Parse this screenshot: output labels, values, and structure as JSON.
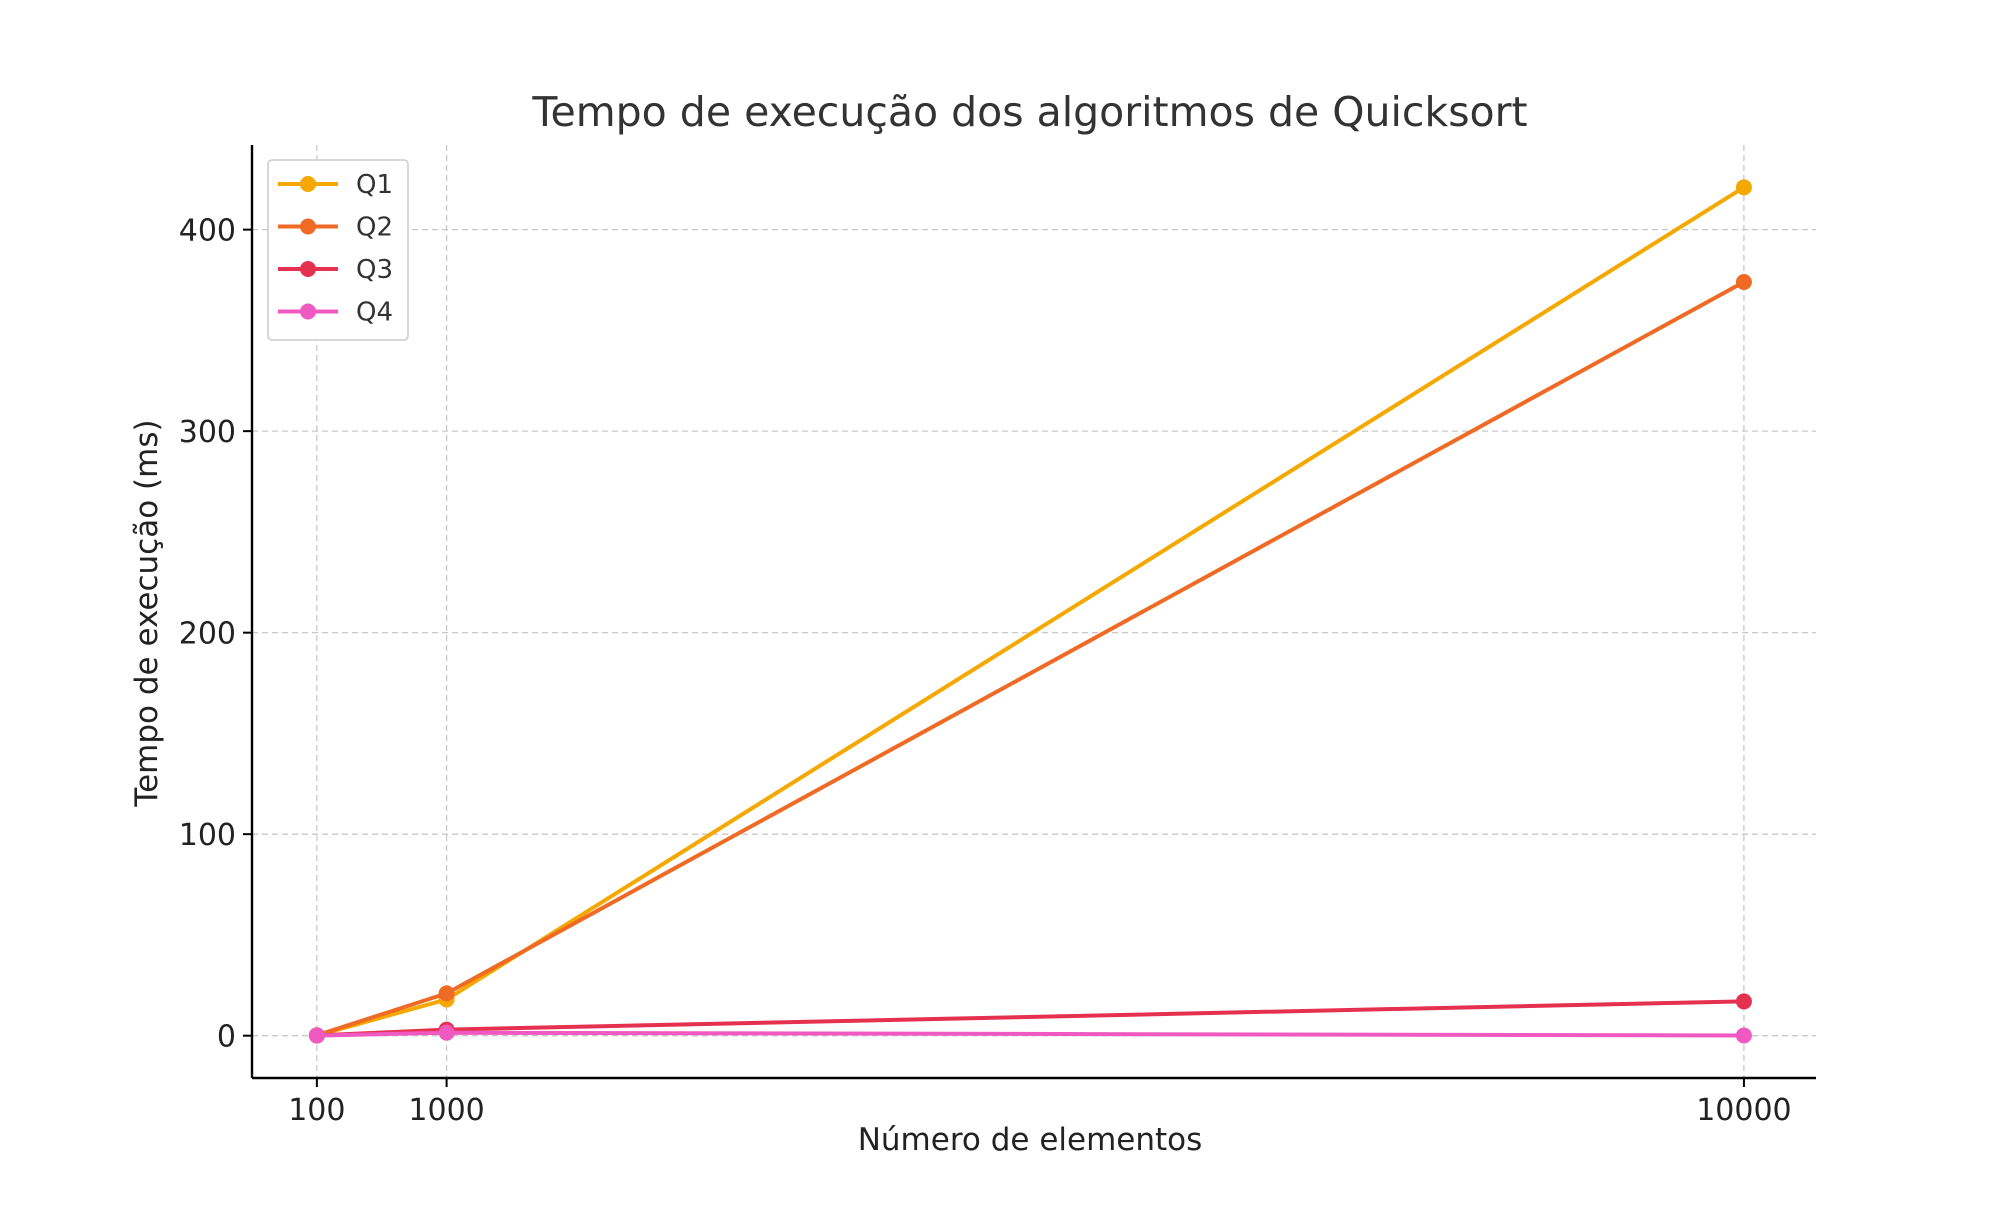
{
  "chart_data": {
    "type": "line",
    "title": "Tempo de execução dos algoritmos de Quicksort",
    "xlabel": "Número de elementos",
    "ylabel": "Tempo de execução (ms)",
    "x": [
      100,
      1000,
      10000
    ],
    "x_tick_labels": [
      "100",
      "1000",
      "10000"
    ],
    "xlim": [
      -350,
      10500
    ],
    "ylim": [
      -21,
      442
    ],
    "y_ticks": [
      0,
      100,
      200,
      300,
      400
    ],
    "y_tick_labels": [
      "0",
      "100",
      "200",
      "300",
      "400"
    ],
    "grid": true,
    "legend_position": "top-left",
    "series": [
      {
        "name": "Q1",
        "color": "#f5a800",
        "values": [
          0.1,
          18,
          421
        ]
      },
      {
        "name": "Q2",
        "color": "#ef6a24",
        "values": [
          0.2,
          21,
          374
        ]
      },
      {
        "name": "Q3",
        "color": "#e6304f",
        "values": [
          0.1,
          3,
          17
        ]
      },
      {
        "name": "Q4",
        "color": "#f059c1",
        "values": [
          0.05,
          1.5,
          0.1
        ]
      }
    ]
  }
}
